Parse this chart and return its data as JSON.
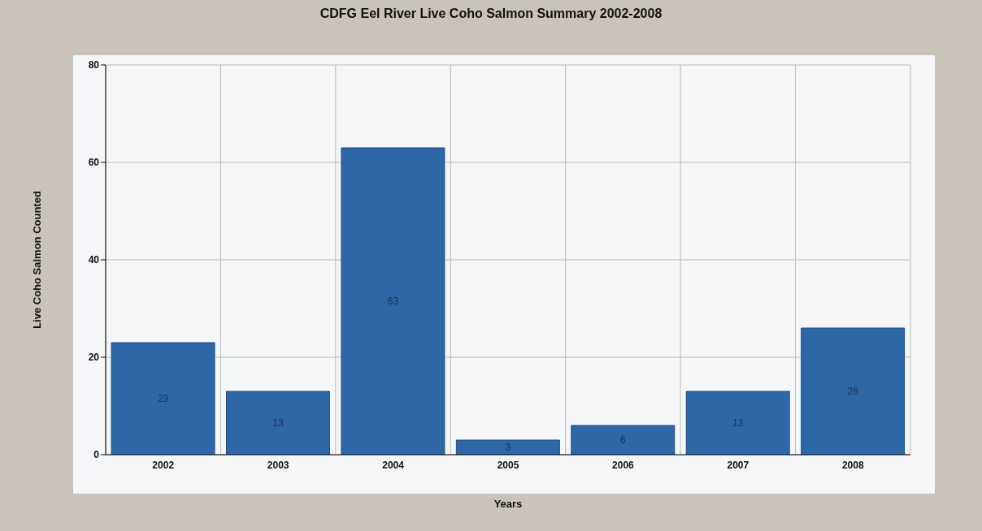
{
  "chart_data": {
    "type": "bar",
    "title": "CDFG Eel River Live Coho Salmon Summary 2002-2008",
    "xlabel": "Years",
    "ylabel": "Live Coho Salmon Counted",
    "categories": [
      "2002",
      "2003",
      "2004",
      "2005",
      "2006",
      "2007",
      "2008"
    ],
    "values": [
      23,
      13,
      63,
      3,
      6,
      13,
      26
    ],
    "color": "#2e67a6",
    "ylim": [
      0,
      80
    ],
    "yticks": [
      0,
      20,
      40,
      60,
      80
    ],
    "grid": true,
    "data_labels": true
  }
}
